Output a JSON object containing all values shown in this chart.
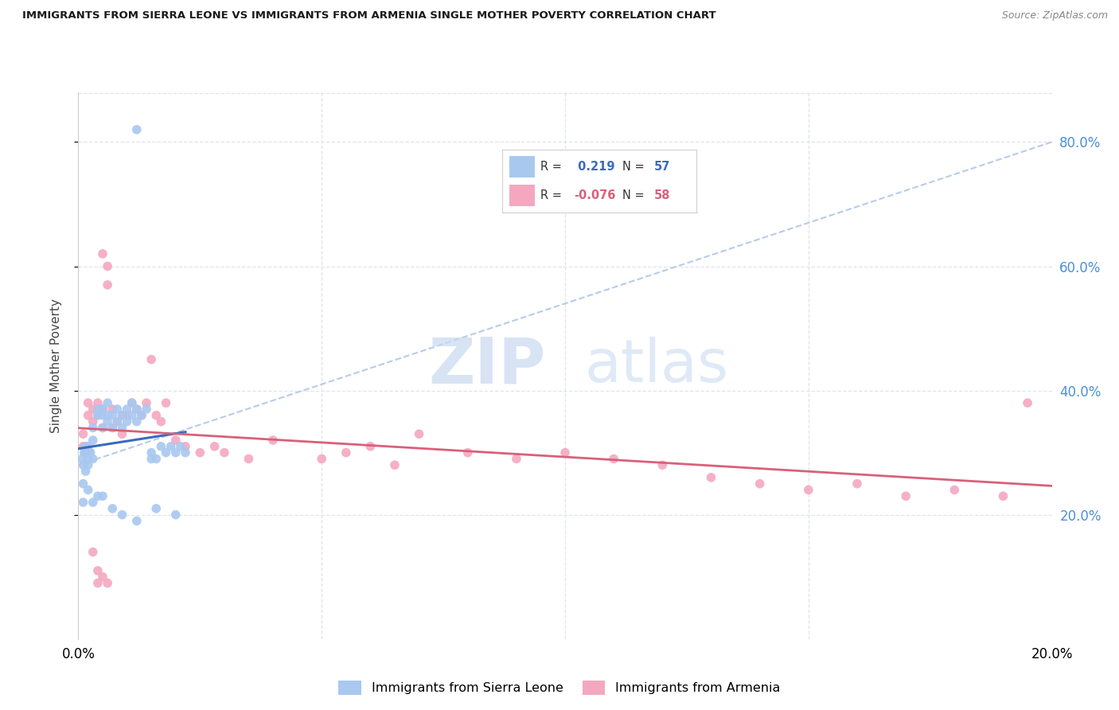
{
  "title": "IMMIGRANTS FROM SIERRA LEONE VS IMMIGRANTS FROM ARMENIA SINGLE MOTHER POVERTY CORRELATION CHART",
  "source": "Source: ZipAtlas.com",
  "ylabel": "Single Mother Poverty",
  "r_sierra": 0.219,
  "n_sierra": 57,
  "r_armenia": -0.076,
  "n_armenia": 58,
  "sierra_color": "#a8c8f0",
  "armenia_color": "#f4a8c0",
  "trend_sierra_color": "#3a6abf",
  "trend_armenia_color": "#d9607a",
  "trend_diagonal_color": "#b8cce8",
  "watermark_zip": "ZIP",
  "watermark_atlas": "atlas",
  "background_color": "#ffffff",
  "xlim": [
    0.0,
    0.2
  ],
  "ylim": [
    0.0,
    0.88
  ],
  "yticks": [
    0.2,
    0.4,
    0.6,
    0.8
  ],
  "xtick_labels_positions": [
    0.0,
    0.2
  ],
  "grid_color": "#e0e4ec",
  "legend_r1_color": "#3a6abf",
  "legend_r2_color": "#d9607a",
  "sierra_x": [
    0.0008,
    0.001,
    0.0012,
    0.0015,
    0.0015,
    0.0018,
    0.002,
    0.002,
    0.002,
    0.0022,
    0.0025,
    0.003,
    0.003,
    0.003,
    0.004,
    0.004,
    0.005,
    0.005,
    0.005,
    0.006,
    0.006,
    0.006,
    0.007,
    0.007,
    0.008,
    0.008,
    0.009,
    0.009,
    0.01,
    0.01,
    0.011,
    0.011,
    0.012,
    0.012,
    0.013,
    0.014,
    0.015,
    0.015,
    0.016,
    0.017,
    0.018,
    0.019,
    0.02,
    0.021,
    0.022,
    0.001,
    0.001,
    0.002,
    0.003,
    0.004,
    0.005,
    0.007,
    0.009,
    0.012,
    0.016,
    0.02,
    0.012
  ],
  "sierra_y": [
    0.29,
    0.28,
    0.3,
    0.27,
    0.31,
    0.3,
    0.29,
    0.31,
    0.28,
    0.3,
    0.3,
    0.29,
    0.32,
    0.34,
    0.36,
    0.37,
    0.34,
    0.36,
    0.37,
    0.35,
    0.36,
    0.38,
    0.34,
    0.36,
    0.35,
    0.37,
    0.34,
    0.36,
    0.35,
    0.37,
    0.36,
    0.38,
    0.35,
    0.37,
    0.36,
    0.37,
    0.29,
    0.3,
    0.29,
    0.31,
    0.3,
    0.31,
    0.3,
    0.31,
    0.3,
    0.22,
    0.25,
    0.24,
    0.22,
    0.23,
    0.23,
    0.21,
    0.2,
    0.19,
    0.21,
    0.2,
    0.82
  ],
  "armenia_x": [
    0.001,
    0.001,
    0.0015,
    0.002,
    0.002,
    0.003,
    0.003,
    0.004,
    0.004,
    0.005,
    0.005,
    0.005,
    0.006,
    0.006,
    0.007,
    0.007,
    0.008,
    0.009,
    0.009,
    0.01,
    0.011,
    0.012,
    0.013,
    0.014,
    0.015,
    0.016,
    0.017,
    0.018,
    0.02,
    0.022,
    0.025,
    0.028,
    0.03,
    0.035,
    0.04,
    0.05,
    0.055,
    0.06,
    0.065,
    0.07,
    0.08,
    0.09,
    0.1,
    0.11,
    0.12,
    0.13,
    0.14,
    0.15,
    0.16,
    0.17,
    0.18,
    0.19,
    0.003,
    0.004,
    0.004,
    0.005,
    0.006,
    0.195
  ],
  "armenia_y": [
    0.31,
    0.33,
    0.3,
    0.36,
    0.38,
    0.35,
    0.37,
    0.36,
    0.38,
    0.34,
    0.37,
    0.62,
    0.6,
    0.57,
    0.34,
    0.37,
    0.35,
    0.33,
    0.36,
    0.36,
    0.38,
    0.37,
    0.36,
    0.38,
    0.45,
    0.36,
    0.35,
    0.38,
    0.32,
    0.31,
    0.3,
    0.31,
    0.3,
    0.29,
    0.32,
    0.29,
    0.3,
    0.31,
    0.28,
    0.33,
    0.3,
    0.29,
    0.3,
    0.29,
    0.28,
    0.26,
    0.25,
    0.24,
    0.25,
    0.23,
    0.24,
    0.23,
    0.14,
    0.11,
    0.09,
    0.1,
    0.09,
    0.38
  ]
}
